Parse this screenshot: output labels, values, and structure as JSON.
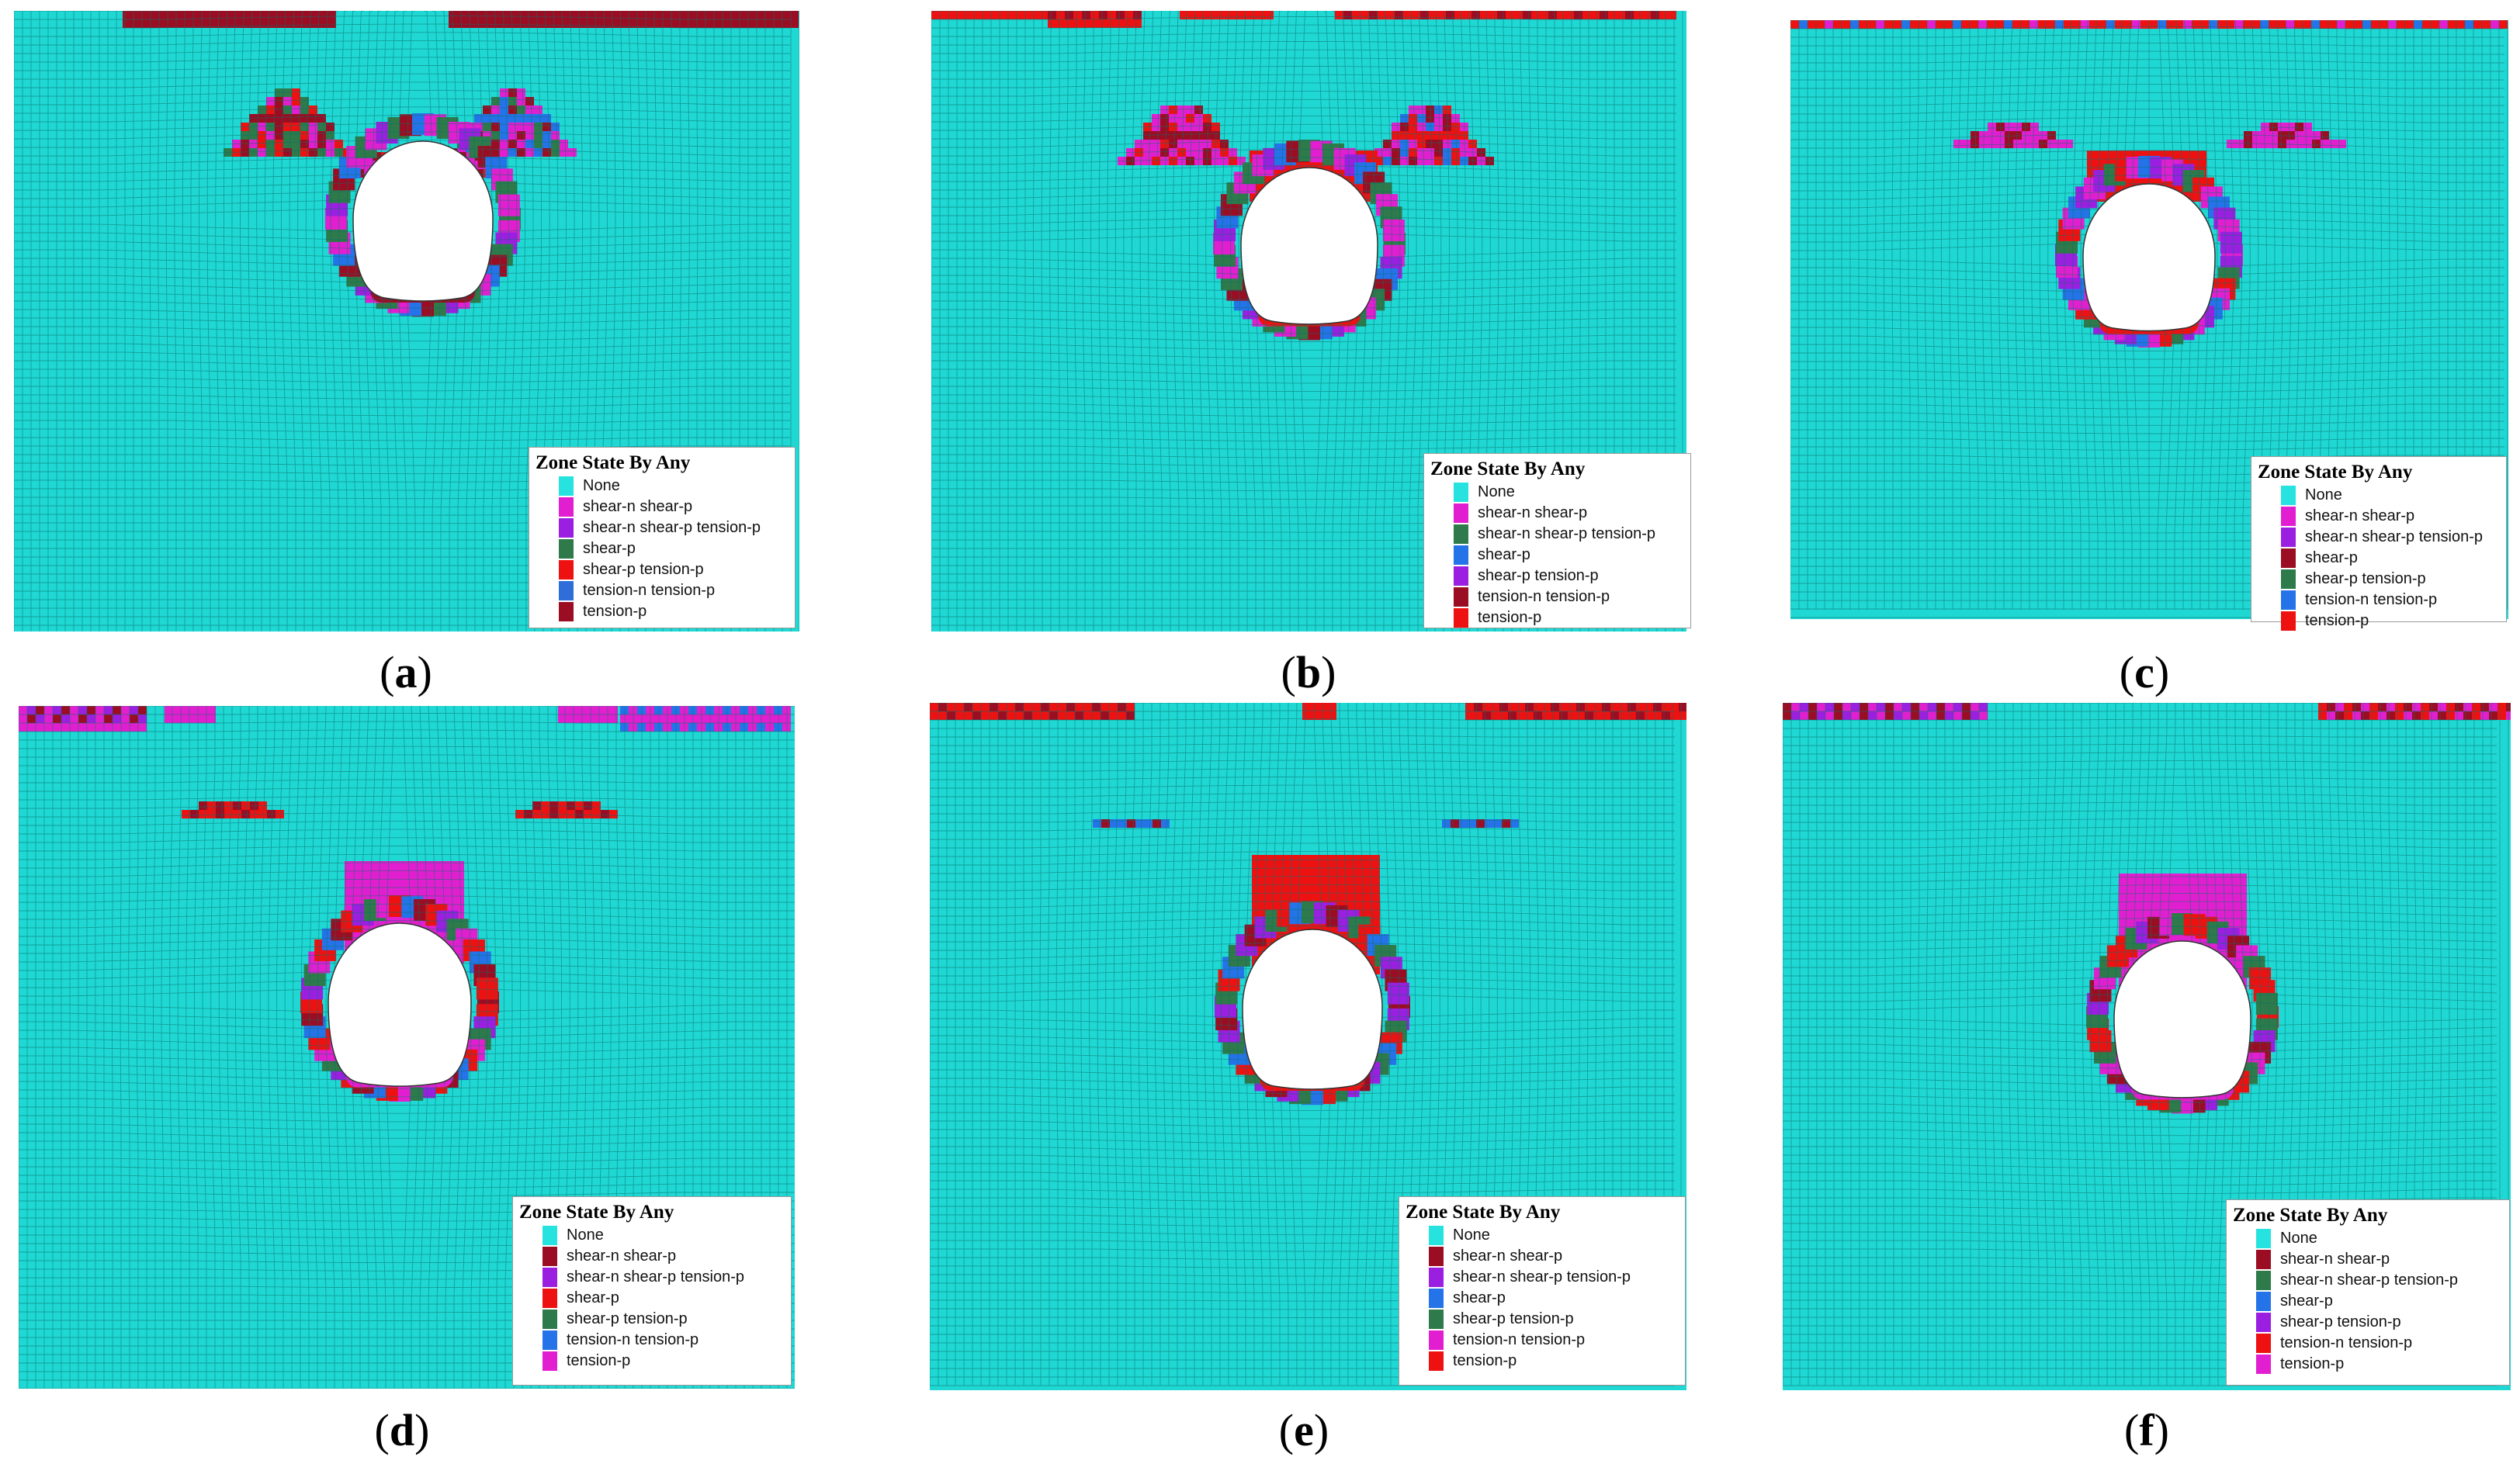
{
  "colors": {
    "mesh_fill": "#1fd8d4",
    "mesh_line": "#08706c",
    "cavity": "#ffffff"
  },
  "state_colors": {
    "None": "#27e3e0",
    "tension-p": "#ee1111",
    "tension-p (dark)": "#9b0d22",
    "shear-n shear-p": "#e21fd0",
    "shear-n shear-p tension-p": "#9b1fe0",
    "shear-p": "#2573e8",
    "shear-p tension-p": "#2f7a4a",
    "tension-n tension-p": "#2f6ed8"
  },
  "panels": [
    {
      "id": "a",
      "caption_letter": "a",
      "legend": {
        "title": "Zone State By Any",
        "items": [
          {
            "label": "None",
            "color": "#27e3e0"
          },
          {
            "label": "shear-n shear-p",
            "color": "#e21fd0"
          },
          {
            "label": "shear-n shear-p tension-p",
            "color": "#9b1fe0"
          },
          {
            "label": "shear-p",
            "color": "#2f7a4a"
          },
          {
            "label": "shear-p tension-p",
            "color": "#ee1111"
          },
          {
            "label": "tension-n tension-p",
            "color": "#2f6ed8"
          },
          {
            "label": "tension-p",
            "color": "#9b0d22"
          }
        ]
      }
    },
    {
      "id": "b",
      "caption_letter": "b",
      "legend": {
        "title": "Zone State By Any",
        "items": [
          {
            "label": "None",
            "color": "#27e3e0"
          },
          {
            "label": "shear-n shear-p",
            "color": "#e21fd0"
          },
          {
            "label": "shear-n shear-p tension-p",
            "color": "#2f7a4a"
          },
          {
            "label": "shear-p",
            "color": "#2573e8"
          },
          {
            "label": "shear-p tension-p",
            "color": "#9b1fe0"
          },
          {
            "label": "tension-n tension-p",
            "color": "#9b0d22"
          },
          {
            "label": "tension-p",
            "color": "#ee1111"
          }
        ]
      }
    },
    {
      "id": "c",
      "caption_letter": "c",
      "legend": {
        "title": "Zone State By Any",
        "items": [
          {
            "label": "None",
            "color": "#27e3e0"
          },
          {
            "label": "shear-n shear-p",
            "color": "#e21fd0"
          },
          {
            "label": "shear-n shear-p tension-p",
            "color": "#9b1fe0"
          },
          {
            "label": "shear-p",
            "color": "#9b0d22"
          },
          {
            "label": "shear-p tension-p",
            "color": "#2f7a4a"
          },
          {
            "label": "tension-n tension-p",
            "color": "#2573e8"
          },
          {
            "label": "tension-p",
            "color": "#ee1111"
          }
        ]
      }
    },
    {
      "id": "d",
      "caption_letter": "d",
      "legend": {
        "title": "Zone State By Any",
        "items": [
          {
            "label": "None",
            "color": "#27e3e0"
          },
          {
            "label": "shear-n shear-p",
            "color": "#9b0d22"
          },
          {
            "label": "shear-n shear-p tension-p",
            "color": "#9b1fe0"
          },
          {
            "label": "shear-p",
            "color": "#ee1111"
          },
          {
            "label": "shear-p tension-p",
            "color": "#2f7a4a"
          },
          {
            "label": "tension-n tension-p",
            "color": "#2573e8"
          },
          {
            "label": "tension-p",
            "color": "#e21fd0"
          }
        ]
      }
    },
    {
      "id": "e",
      "caption_letter": "e",
      "legend": {
        "title": "Zone State By Any",
        "items": [
          {
            "label": "None",
            "color": "#27e3e0"
          },
          {
            "label": "shear-n shear-p",
            "color": "#9b0d22"
          },
          {
            "label": "shear-n shear-p tension-p",
            "color": "#9b1fe0"
          },
          {
            "label": "shear-p",
            "color": "#2573e8"
          },
          {
            "label": "shear-p tension-p",
            "color": "#2f7a4a"
          },
          {
            "label": "tension-n tension-p",
            "color": "#e21fd0"
          },
          {
            "label": "tension-p",
            "color": "#ee1111"
          }
        ]
      }
    },
    {
      "id": "f",
      "caption_letter": "f",
      "legend": {
        "title": "Zone State By Any",
        "items": [
          {
            "label": "None",
            "color": "#27e3e0"
          },
          {
            "label": "shear-n shear-p",
            "color": "#9b0d22"
          },
          {
            "label": "shear-n shear-p tension-p",
            "color": "#2f7a4a"
          },
          {
            "label": "shear-p",
            "color": "#2573e8"
          },
          {
            "label": "shear-p tension-p",
            "color": "#9b1fe0"
          },
          {
            "label": "tension-n tension-p",
            "color": "#ee1111"
          },
          {
            "label": "tension-p",
            "color": "#e21fd0"
          }
        ]
      }
    }
  ]
}
